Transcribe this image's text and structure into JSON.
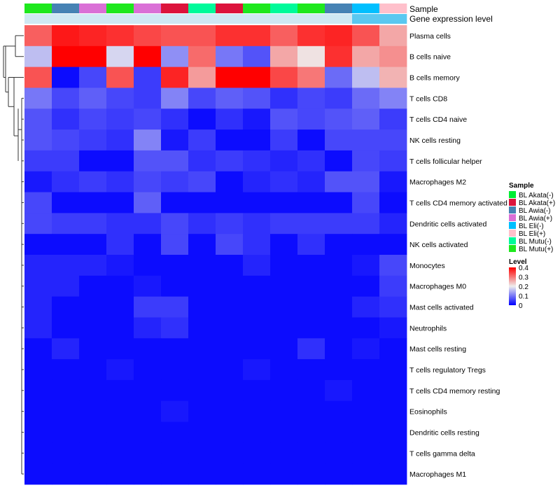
{
  "chart_data": {
    "type": "heatmap",
    "title": "",
    "annotation_labels": [
      "Sample",
      "Gene expression level"
    ],
    "columns": [
      {
        "sample": "BL Mutu(+)",
        "expression": "light"
      },
      {
        "sample": "BL Awia(-)",
        "expression": "light"
      },
      {
        "sample": "BL Awia(+)",
        "expression": "light"
      },
      {
        "sample": "BL Mutu(+)",
        "expression": "light"
      },
      {
        "sample": "BL Awia(+)",
        "expression": "light"
      },
      {
        "sample": "BL Akata(+)",
        "expression": "light"
      },
      {
        "sample": "BL Mutu(-)",
        "expression": "light"
      },
      {
        "sample": "BL Akata(+)",
        "expression": "light"
      },
      {
        "sample": "BL Mutu(+)",
        "expression": "light"
      },
      {
        "sample": "BL Mutu(-)",
        "expression": "light"
      },
      {
        "sample": "BL Mutu(+)",
        "expression": "light"
      },
      {
        "sample": "BL Awia(-)",
        "expression": "light"
      },
      {
        "sample": "BL Eli(-)",
        "expression": "dark"
      },
      {
        "sample": "BL Eli(+)",
        "expression": "dark"
      }
    ],
    "rows": [
      "Plasma cells",
      "B cells naive",
      "B cells memory",
      "T cells CD8",
      "T cells CD4 naive",
      "NK cells resting",
      "T cells follicular helper",
      "Macrophages M2",
      "T cells CD4 memory activated",
      "Dendritic cells activated",
      "NK cells activated",
      "Monocytes",
      "Macrophages M0",
      "Mast cells activated",
      "Neutrophils",
      "Mast cells resting",
      "T cells regulatory  Tregs",
      "T cells CD4 memory resting",
      "Eosinophils",
      "Dendritic cells resting",
      "T cells gamma delta",
      "Macrophages M1"
    ],
    "values": [
      [
        0.32,
        0.38,
        0.37,
        0.36,
        0.34,
        0.33,
        0.33,
        0.36,
        0.36,
        0.32,
        0.36,
        0.37,
        0.33,
        0.26
      ],
      [
        0.16,
        0.4,
        0.4,
        0.18,
        0.4,
        0.12,
        0.31,
        0.1,
        0.07,
        0.26,
        0.21,
        0.36,
        0.26,
        0.28
      ],
      [
        0.33,
        0.01,
        0.06,
        0.33,
        0.05,
        0.37,
        0.27,
        0.4,
        0.4,
        0.34,
        0.3,
        0.09,
        0.16,
        0.25
      ],
      [
        0.1,
        0.06,
        0.08,
        0.06,
        0.05,
        0.11,
        0.06,
        0.08,
        0.07,
        0.04,
        0.06,
        0.05,
        0.09,
        0.11
      ],
      [
        0.07,
        0.04,
        0.06,
        0.05,
        0.06,
        0.04,
        0.01,
        0.04,
        0.02,
        0.07,
        0.06,
        0.07,
        0.08,
        0.05
      ],
      [
        0.07,
        0.06,
        0.05,
        0.04,
        0.11,
        0.02,
        0.05,
        0.01,
        0.01,
        0.05,
        0.01,
        0.06,
        0.06,
        0.06
      ],
      [
        0.05,
        0.05,
        0.01,
        0.01,
        0.07,
        0.07,
        0.04,
        0.05,
        0.04,
        0.03,
        0.04,
        0.01,
        0.06,
        0.05
      ],
      [
        0.02,
        0.04,
        0.05,
        0.04,
        0.06,
        0.05,
        0.06,
        0.01,
        0.03,
        0.04,
        0.03,
        0.07,
        0.07,
        0.02
      ],
      [
        0.06,
        0.01,
        0.01,
        0.01,
        0.08,
        0.01,
        0.01,
        0.01,
        0.01,
        0.01,
        0.01,
        0.01,
        0.06,
        0.01
      ],
      [
        0.06,
        0.05,
        0.05,
        0.04,
        0.04,
        0.06,
        0.04,
        0.05,
        0.04,
        0.05,
        0.05,
        0.05,
        0.05,
        0.03
      ],
      [
        0.01,
        0.01,
        0.01,
        0.04,
        0.01,
        0.06,
        0.01,
        0.06,
        0.04,
        0.01,
        0.04,
        0.01,
        0.01,
        0.01
      ],
      [
        0.03,
        0.03,
        0.03,
        0.02,
        0.01,
        0.01,
        0.01,
        0.01,
        0.03,
        0.01,
        0.01,
        0.01,
        0.02,
        0.06
      ],
      [
        0.03,
        0.03,
        0.01,
        0.01,
        0.02,
        0.01,
        0.01,
        0.01,
        0.01,
        0.01,
        0.01,
        0.01,
        0.01,
        0.05
      ],
      [
        0.03,
        0.01,
        0.01,
        0.01,
        0.05,
        0.05,
        0.01,
        0.01,
        0.01,
        0.01,
        0.01,
        0.01,
        0.03,
        0.04
      ],
      [
        0.03,
        0.01,
        0.01,
        0.01,
        0.03,
        0.04,
        0.01,
        0.01,
        0.01,
        0.01,
        0.01,
        0.01,
        0.01,
        0.02
      ],
      [
        0.01,
        0.03,
        0.01,
        0.01,
        0.01,
        0.01,
        0.01,
        0.01,
        0.01,
        0.01,
        0.04,
        0.01,
        0.02,
        0.01
      ],
      [
        0.01,
        0.01,
        0.01,
        0.02,
        0.01,
        0.01,
        0.01,
        0.01,
        0.02,
        0.01,
        0.01,
        0.01,
        0.01,
        0.01
      ],
      [
        0.01,
        0.01,
        0.01,
        0.01,
        0.01,
        0.01,
        0.01,
        0.01,
        0.01,
        0.01,
        0.01,
        0.02,
        0.01,
        0.01
      ],
      [
        0.01,
        0.01,
        0.01,
        0.01,
        0.01,
        0.02,
        0.01,
        0.01,
        0.01,
        0.01,
        0.01,
        0.01,
        0.01,
        0.01
      ],
      [
        0.01,
        0.01,
        0.01,
        0.01,
        0.01,
        0.01,
        0.01,
        0.01,
        0.01,
        0.01,
        0.01,
        0.01,
        0.01,
        0.01
      ],
      [
        0.01,
        0.01,
        0.01,
        0.01,
        0.01,
        0.01,
        0.01,
        0.01,
        0.01,
        0.01,
        0.01,
        0.01,
        0.01,
        0.01
      ],
      [
        0.01,
        0.01,
        0.01,
        0.01,
        0.01,
        0.01,
        0.01,
        0.01,
        0.01,
        0.01,
        0.01,
        0.01,
        0.01,
        0.01
      ]
    ],
    "color_scale": {
      "range": [
        0,
        0.4
      ],
      "stops": [
        {
          "value": 0,
          "color": "#0000ff"
        },
        {
          "value": 0.2,
          "color": "#eeeeee"
        },
        {
          "value": 0.4,
          "color": "#ff0000"
        }
      ]
    },
    "expression_colors": {
      "light": "#cfe8f3",
      "dark": "#5ac8f0"
    },
    "row_dendrogram": true,
    "legends": {
      "sample": {
        "title": "Sample",
        "entries": [
          {
            "label": "BL Akata(-)",
            "color": "#00ee33"
          },
          {
            "label": "BL Akata(+)",
            "color": "#dc143c"
          },
          {
            "label": "BL Awia(-)",
            "color": "#4682b4"
          },
          {
            "label": "BL Awia(+)",
            "color": "#da70d6"
          },
          {
            "label": "BL Eli(-)",
            "color": "#00bfff"
          },
          {
            "label": "BL Eli(+)",
            "color": "#ffc0cb"
          },
          {
            "label": "BL Mutu(-)",
            "color": "#00fa9a"
          },
          {
            "label": "BL Mutu(+)",
            "color": "#1ee81e"
          }
        ]
      },
      "level": {
        "title": "Level",
        "ticks": [
          "0.4",
          "0.3",
          "0.2",
          "0.1",
          "0"
        ],
        "tick_values": [
          0.4,
          0.3,
          0.2,
          0.1,
          0
        ]
      }
    }
  }
}
